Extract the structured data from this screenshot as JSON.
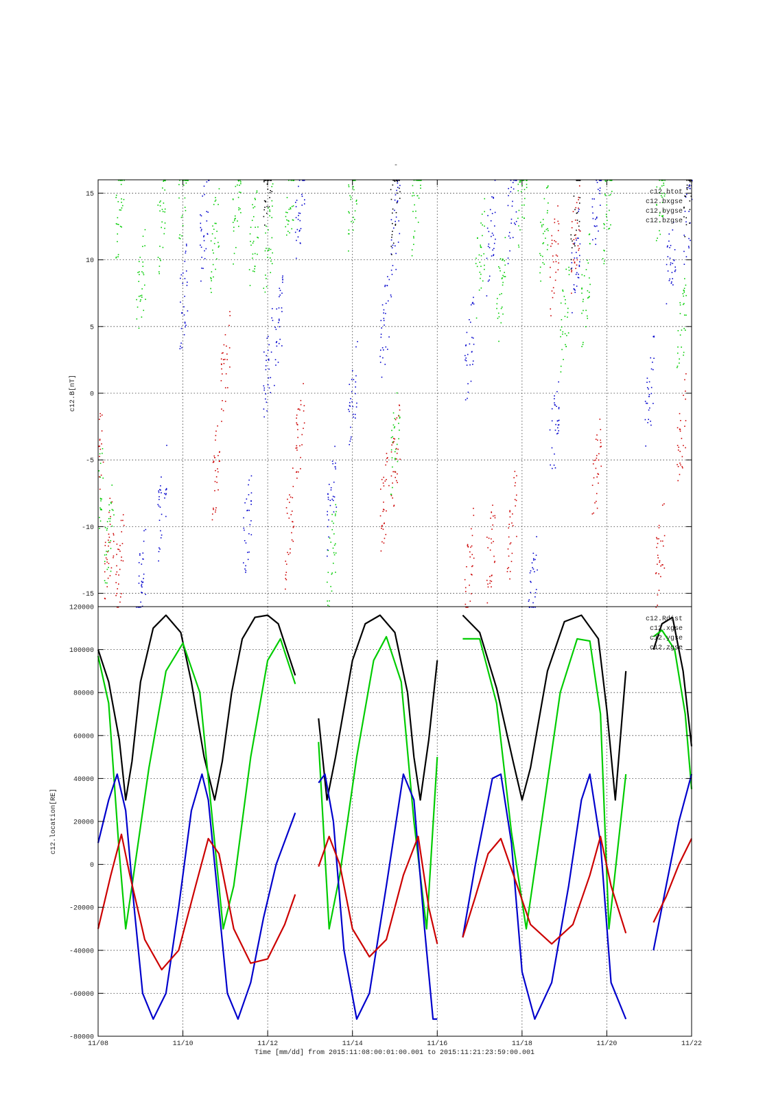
{
  "title_marker": "-",
  "footer": {
    "xlabel": "Time [mm/dd]  from 2015:11:08:00:01:00.001  to  2015:11:21:23:59:00.001"
  },
  "colors": {
    "btot": "#000000",
    "xgse": "#00cc00",
    "ygse": "#0000cc",
    "zgse": "#cc0000"
  },
  "chart_data": [
    {
      "type": "scatter",
      "ylabel": "c12.B[nT]",
      "ylim": [
        -16,
        16
      ],
      "yticks": [
        {
          "v": 15,
          "label": "15"
        },
        {
          "v": 10,
          "label": "10"
        },
        {
          "v": 5,
          "label": "5"
        },
        {
          "v": 0,
          "label": "0"
        },
        {
          "v": -5,
          "label": "-5"
        },
        {
          "v": -10,
          "label": "-10"
        },
        {
          "v": -15,
          "label": "-15"
        }
      ],
      "grid": true,
      "legend_position": "top-right",
      "legend": [
        "c12.btot",
        "c12.bxgse",
        "c12.bygse",
        "c12.bzgse"
      ],
      "series": [
        {
          "name": "c12.bxgse",
          "color": "#00cc00",
          "style": "scatter",
          "x": [
            "11/08 00:00",
            "11/08 06:00",
            "11/08 12:00",
            "11/09 00:00",
            "11/09 12:00",
            "11/10 00:00",
            "11/10 18:00",
            "11/11 06:00",
            "11/11 16:00",
            "11/12 00:00",
            "11/12 12:00",
            "11/13 12:00",
            "11/14 00:00",
            "11/15 00:00",
            "11/15 12:00",
            "11/17 00:00",
            "11/17 12:00",
            "11/18 00:00",
            "11/18 12:00",
            "11/19 00:00",
            "11/19 12:00",
            "11/20 00:00",
            "11/21 06:00",
            "11/21 18:00"
          ],
          "y": [
            -8,
            -11,
            14,
            8,
            13,
            15.5,
            12,
            14,
            12,
            11,
            14,
            -12,
            15,
            -3,
            15,
            10,
            8,
            15,
            12,
            6,
            8,
            14,
            15,
            5
          ]
        },
        {
          "name": "c12.bygse",
          "color": "#0000cc",
          "style": "scatter",
          "x": [
            "11/09 00:00",
            "11/09 12:00",
            "11/10 00:00",
            "11/10 12:00",
            "11/11 12:00",
            "11/12 00:00",
            "11/12 06:00",
            "11/12 18:00",
            "11/13 12:00",
            "11/14 00:00",
            "11/14 18:00",
            "11/15 00:00",
            "11/16 18:00",
            "11/17 06:00",
            "11/17 18:00",
            "11/18 06:00",
            "11/18 18:00",
            "11/19 06:00",
            "11/19 18:00",
            "11/21 00:00",
            "11/21 12:00",
            "11/21 22:00"
          ],
          "y": [
            -14,
            -8,
            7,
            13,
            -10,
            2,
            5,
            14,
            -8,
            0,
            5,
            12,
            3,
            12,
            14,
            -15,
            -3,
            10,
            14,
            0,
            10,
            13
          ]
        },
        {
          "name": "c12.bzgse",
          "color": "#cc0000",
          "style": "scatter",
          "x": [
            "11/08 00:00",
            "11/08 06:00",
            "11/08 12:00",
            "11/10 18:00",
            "11/11 00:00",
            "11/12 12:00",
            "11/12 18:00",
            "11/14 18:00",
            "11/15 00:00",
            "11/16 18:00",
            "11/17 06:00",
            "11/17 18:00",
            "11/18 18:00",
            "11/19 06:00",
            "11/19 18:00",
            "11/21 06:00",
            "11/21 18:00"
          ],
          "y": [
            -5,
            -11,
            -13,
            -6,
            2,
            -10,
            -3,
            -8,
            -5,
            -13,
            -12,
            -10,
            10,
            12,
            -6,
            -12,
            -3
          ]
        },
        {
          "name": "c12.btot",
          "color": "#000000",
          "style": "scatter",
          "x": [
            "11/12 00:00",
            "11/15 00:00",
            "11/19 06:00",
            "11/21 22:00"
          ],
          "y": [
            16,
            15,
            14,
            15
          ]
        }
      ]
    },
    {
      "type": "line",
      "ylabel": "c12.location[RE]",
      "ylim": [
        -80000,
        120000
      ],
      "yticks": [
        {
          "v": 120000,
          "label": "120000"
        },
        {
          "v": 100000,
          "label": "100000"
        },
        {
          "v": 80000,
          "label": "80000"
        },
        {
          "v": 60000,
          "label": "60000"
        },
        {
          "v": 40000,
          "label": "40000"
        },
        {
          "v": 20000,
          "label": "20000"
        },
        {
          "v": 0,
          "label": "0"
        },
        {
          "v": -20000,
          "label": "-20000"
        },
        {
          "v": -40000,
          "label": "-40000"
        },
        {
          "v": -60000,
          "label": "-60000"
        },
        {
          "v": -80000,
          "label": "-80000"
        }
      ],
      "xlim": [
        "11/08",
        "11/22"
      ],
      "xticks": [
        "11/08",
        "11/10",
        "11/12",
        "11/14",
        "11/16",
        "11/18",
        "11/20",
        "11/22"
      ],
      "grid": true,
      "legend_position": "top-right",
      "legend": [
        "c12.Rdist",
        "c12.xgse",
        "c12.ygse",
        "c12.zgse"
      ],
      "series": [
        {
          "name": "c12.Rdist",
          "color": "#000000",
          "segments": [
            {
              "x": [
                0.0,
                0.25,
                0.5,
                0.65,
                0.8,
                1.0,
                1.3,
                1.6,
                1.95,
                2.2,
                2.5,
                2.75,
                2.93,
                3.15,
                3.4,
                3.7,
                4.0,
                4.25,
                4.45,
                4.65
              ],
              "y": [
                100000,
                85000,
                58000,
                30000,
                48000,
                85000,
                110000,
                116000,
                108000,
                85000,
                50000,
                30000,
                48000,
                80000,
                105000,
                115000,
                116000,
                112000,
                100000,
                88000
              ]
            },
            {
              "x": [
                5.2,
                5.4,
                5.6,
                6.0,
                6.3,
                6.65,
                7.0,
                7.3,
                7.45,
                7.6,
                7.8,
                8.0
              ],
              "y": [
                68000,
                30000,
                50000,
                95000,
                112000,
                116000,
                108000,
                80000,
                50000,
                30000,
                58000,
                95000
              ]
            },
            {
              "x": [
                8.6,
                9.0,
                9.4,
                9.8,
                10.0,
                10.2,
                10.6,
                11.0,
                11.4,
                11.8,
                12.0,
                12.2,
                12.45
              ],
              "y": [
                116000,
                108000,
                82000,
                47000,
                30000,
                45000,
                90000,
                113000,
                116000,
                105000,
                72000,
                30000,
                90000
              ]
            },
            {
              "x": [
                13.1,
                13.3,
                13.55,
                13.8,
                14.0
              ],
              "y": [
                100000,
                112000,
                115000,
                90000,
                55000
              ]
            }
          ]
        },
        {
          "name": "c12.xgse",
          "color": "#00cc00",
          "segments": [
            {
              "x": [
                0.0,
                0.25,
                0.5,
                0.65,
                0.8,
                1.2,
                1.6,
                2.0,
                2.4,
                2.7,
                2.95,
                3.2,
                3.6,
                4.0,
                4.3,
                4.65
              ],
              "y": [
                97000,
                75000,
                5000,
                -30000,
                -10000,
                45000,
                90000,
                103000,
                80000,
                20000,
                -30000,
                -10000,
                50000,
                95000,
                105000,
                84000
              ]
            },
            {
              "x": [
                5.2,
                5.45,
                5.7,
                6.1,
                6.5,
                6.8,
                7.15,
                7.45,
                7.75,
                8.0
              ],
              "y": [
                57000,
                -30000,
                -5000,
                50000,
                95000,
                106000,
                85000,
                20000,
                -30000,
                50000
              ]
            },
            {
              "x": [
                8.6,
                9.0,
                9.4,
                9.75,
                10.1,
                10.5,
                10.9,
                11.3,
                11.6,
                11.85,
                12.05,
                12.45
              ],
              "y": [
                105000,
                105000,
                75000,
                15000,
                -30000,
                25000,
                80000,
                105000,
                104000,
                70000,
                -30000,
                42000
              ]
            },
            {
              "x": [
                13.1,
                13.3,
                13.6,
                13.85,
                14.0
              ],
              "y": [
                106000,
                109000,
                100000,
                70000,
                35000
              ]
            }
          ]
        },
        {
          "name": "c12.ygse",
          "color": "#0000cc",
          "segments": [
            {
              "x": [
                0.0,
                0.25,
                0.45,
                0.65,
                0.85,
                1.05,
                1.3,
                1.6,
                1.9,
                2.2,
                2.45,
                2.6,
                2.85,
                3.05,
                3.3,
                3.6,
                3.9,
                4.2,
                4.65
              ],
              "y": [
                10000,
                30000,
                42000,
                25000,
                -20000,
                -60000,
                -72000,
                -60000,
                -20000,
                25000,
                42000,
                30000,
                -20000,
                -60000,
                -72000,
                -55000,
                -25000,
                0,
                24000
              ]
            },
            {
              "x": [
                5.2,
                5.35,
                5.55,
                5.8,
                6.1,
                6.4,
                6.8,
                7.2,
                7.45,
                7.7,
                7.9,
                8.0
              ],
              "y": [
                38000,
                42000,
                20000,
                -40000,
                -72000,
                -60000,
                -10000,
                42000,
                30000,
                -30000,
                -72000,
                -72000
              ]
            },
            {
              "x": [
                8.6,
                8.9,
                9.3,
                9.5,
                9.75,
                10.0,
                10.3,
                10.7,
                11.1,
                11.4,
                11.6,
                11.85,
                12.1,
                12.45
              ],
              "y": [
                -34000,
                0,
                40000,
                42000,
                10000,
                -50000,
                -72000,
                -55000,
                -10000,
                30000,
                42000,
                10000,
                -55000,
                -72000
              ]
            },
            {
              "x": [
                13.1,
                13.4,
                13.7,
                14.0
              ],
              "y": [
                -40000,
                -10000,
                20000,
                42000
              ]
            }
          ]
        },
        {
          "name": "c12.zgse",
          "color": "#cc0000",
          "segments": [
            {
              "x": [
                0.0,
                0.3,
                0.55,
                0.75,
                1.1,
                1.5,
                1.9,
                2.3,
                2.6,
                2.85,
                3.2,
                3.6,
                4.0,
                4.4,
                4.65
              ],
              "y": [
                -30000,
                -5000,
                14000,
                -5000,
                -35000,
                -49000,
                -40000,
                -10000,
                12000,
                5000,
                -30000,
                -46000,
                -44000,
                -28000,
                -14000
              ]
            },
            {
              "x": [
                5.2,
                5.45,
                5.7,
                6.0,
                6.4,
                6.8,
                7.2,
                7.55,
                7.8,
                8.0
              ],
              "y": [
                -1000,
                13000,
                0,
                -30000,
                -43000,
                -35000,
                -5000,
                13000,
                -20000,
                -37000
              ]
            },
            {
              "x": [
                8.6,
                8.9,
                9.2,
                9.5,
                9.8,
                10.2,
                10.7,
                11.2,
                11.6,
                11.85,
                12.1,
                12.45
              ],
              "y": [
                -34000,
                -15000,
                5000,
                12000,
                -5000,
                -28000,
                -37000,
                -28000,
                -5000,
                13000,
                -10000,
                -32000
              ]
            },
            {
              "x": [
                13.1,
                13.4,
                13.7,
                14.0
              ],
              "y": [
                -27000,
                -15000,
                0,
                12000
              ]
            }
          ]
        }
      ]
    }
  ]
}
